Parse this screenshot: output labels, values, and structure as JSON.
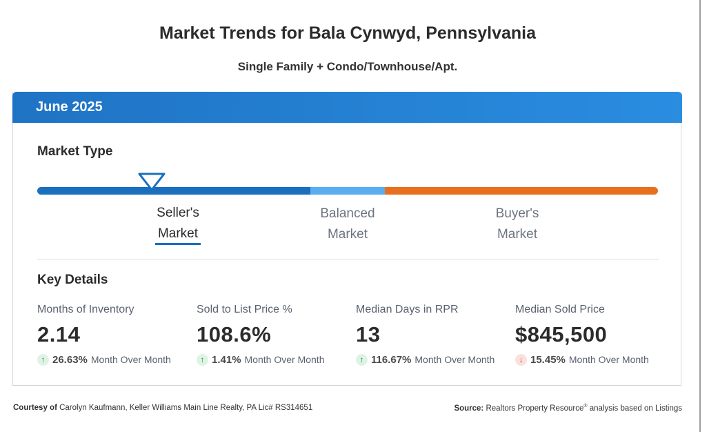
{
  "title": "Market Trends for Bala Cynwyd, Pennsylvania",
  "subtitle": "Single Family + Condo/Townhouse/Apt.",
  "period": "June 2025",
  "market_type": {
    "heading": "Market Type",
    "selected": "Seller's Market",
    "labels": {
      "seller_line1": "Seller's",
      "seller_line2": "Market",
      "balanced_line1": "Balanced",
      "balanced_line2": "Market",
      "buyer_line1": "Buyer's",
      "buyer_line2": "Market"
    },
    "colors": {
      "seller": "#1a6fbf",
      "balanced": "#5aaef0",
      "buyer": "#e86f1e"
    }
  },
  "key_details": {
    "heading": "Key Details",
    "metrics": [
      {
        "label": "Months of Inventory",
        "value": "2.14",
        "direction": "up",
        "change": "26.63%",
        "change_label": "Month Over Month"
      },
      {
        "label": "Sold to List Price %",
        "value": "108.6%",
        "direction": "up",
        "change": "1.41%",
        "change_label": "Month Over Month"
      },
      {
        "label": "Median Days in RPR",
        "value": "13",
        "direction": "up",
        "change": "116.67%",
        "change_label": "Month Over Month"
      },
      {
        "label": "Median Sold Price",
        "value": "$845,500",
        "direction": "down",
        "change": "15.45%",
        "change_label": "Month Over Month"
      }
    ]
  },
  "footer": {
    "courtesy_label": "Courtesy of",
    "courtesy_text": "Carolyn Kaufmann, Keller Williams Main Line Realty, PA Lic# RS314651",
    "source_label": "Source:",
    "source_text": "Realtors Property Resource",
    "source_mark": "®",
    "source_suffix": "analysis based on Listings"
  },
  "icons": {
    "up": "arrow-up-icon",
    "down": "arrow-down-icon",
    "pointer": "triangle-pointer-icon"
  },
  "accent_color": "#1f73c4"
}
